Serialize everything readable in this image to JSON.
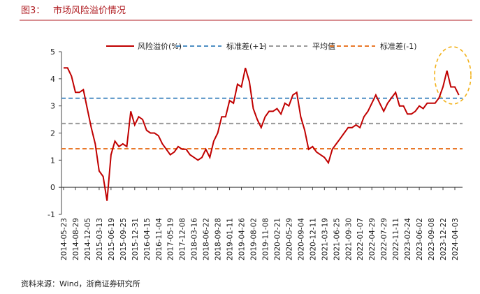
{
  "chart_data": {
    "type": "line",
    "figure_label": "图3：",
    "title": "市场风险溢价情况",
    "source": "资料来源：Wind，浙商证券研究所",
    "categories": [
      "2014-05-23",
      null,
      null,
      "2014-08-29",
      null,
      null,
      "2014-12-05",
      null,
      null,
      "2015-03-13",
      null,
      null,
      "2015-06-19",
      null,
      null,
      "2015-09-25",
      null,
      null,
      "2015-12-31",
      null,
      null,
      "2016-04-15",
      null,
      null,
      "2016-11-04",
      null,
      null,
      "2017-05-19",
      null,
      null,
      "2017-12-08",
      null,
      null,
      "2018-03-16",
      null,
      null,
      "2018-06-22",
      null,
      null,
      "2018-09-28",
      null,
      null,
      "2019-01-11",
      null,
      null,
      "2019-04-26",
      null,
      null,
      "2019-08-02",
      null,
      null,
      "2019-11-08",
      null,
      null,
      "2020-02-21",
      null,
      null,
      "2020-05-29",
      null,
      null,
      "2020-09-04",
      null,
      null,
      "2020-12-11",
      null,
      null,
      "2021-03-19",
      null,
      null,
      "2021-06-25",
      null,
      null,
      "2021-09-30",
      null,
      null,
      "2022-01-07",
      null,
      null,
      "2022-04-29",
      null,
      null,
      "2022-07-29",
      null,
      null,
      "2022-11-11",
      null,
      null,
      "2023-02-24",
      null,
      null,
      "2023-06-02",
      null,
      null,
      "2023-09-08",
      null,
      null,
      "2023-12-22",
      null,
      null,
      "2024-04-03",
      null
    ],
    "series": [
      {
        "name": "风险溢价(%)",
        "color": "#c00000",
        "values": [
          4.4,
          4.4,
          4.1,
          3.5,
          3.5,
          3.6,
          2.9,
          2.2,
          1.6,
          0.6,
          0.4,
          -0.5,
          1.2,
          1.7,
          1.5,
          1.6,
          1.5,
          2.8,
          2.3,
          2.6,
          2.5,
          2.1,
          2.0,
          2.0,
          1.9,
          1.6,
          1.4,
          1.2,
          1.3,
          1.5,
          1.4,
          1.4,
          1.2,
          1.1,
          1.0,
          1.1,
          1.4,
          1.1,
          1.7,
          2.0,
          2.6,
          2.6,
          3.2,
          3.1,
          3.8,
          3.7,
          4.4,
          3.9,
          2.9,
          2.5,
          2.2,
          2.6,
          2.8,
          2.8,
          2.9,
          2.7,
          3.1,
          3.0,
          3.4,
          3.5,
          2.6,
          2.1,
          1.4,
          1.5,
          1.3,
          1.2,
          1.1,
          0.9,
          1.4,
          1.6,
          1.8,
          2.0,
          2.2,
          2.2,
          2.3,
          2.2,
          2.6,
          2.8,
          3.1,
          3.4,
          3.1,
          2.8,
          3.1,
          3.3,
          3.5,
          3.0,
          3.0,
          2.7,
          2.7,
          2.8,
          3.0,
          2.9,
          3.1,
          3.1,
          3.1,
          3.3,
          3.7,
          4.3,
          3.7,
          3.7,
          3.4
        ]
      }
    ],
    "reference_lines": [
      {
        "name": "标准差(+1)",
        "color": "#4f8fc4",
        "value": 3.28
      },
      {
        "name": "平均值",
        "color": "#9a9a9a",
        "value": 2.35
      },
      {
        "name": "标准差(-1)",
        "color": "#e9792b",
        "value": 1.42
      }
    ],
    "ylim": [
      -1,
      5
    ],
    "yticks": [
      -1,
      0,
      1,
      2,
      3,
      4,
      5
    ],
    "legend": "top"
  }
}
